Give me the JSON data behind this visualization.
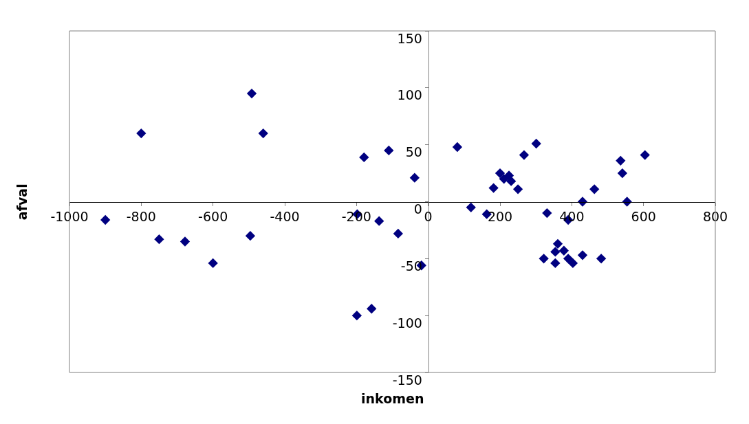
{
  "chart_data": {
    "type": "scatter",
    "xlabel": "inkomen",
    "ylabel": "afval",
    "x": [
      -900,
      -800,
      -750,
      -678,
      -600,
      -492,
      -496,
      -460,
      -198,
      -179,
      -137,
      -110,
      -84,
      -38,
      -19,
      -199,
      -158,
      81,
      119,
      163,
      182,
      200,
      211,
      225,
      231,
      250,
      267,
      301,
      331,
      322,
      361,
      354,
      378,
      390,
      354,
      403,
      430,
      482,
      390,
      430,
      463,
      536,
      541,
      554,
      604
    ],
    "series": [
      {
        "color": "#000080",
        "values": [
          -16,
          60,
          -33,
          -35,
          -54,
          95,
          -30,
          60,
          -11,
          39,
          -17,
          45,
          -28,
          21,
          -56,
          -100,
          -94,
          48,
          -5,
          -11,
          12,
          25,
          20,
          23,
          18,
          11,
          41,
          51,
          -10,
          -50,
          -37,
          -44,
          -43,
          -50,
          -54,
          -54,
          -47,
          -50,
          -16,
          0,
          11,
          36,
          25,
          0,
          41
        ]
      }
    ],
    "marker": "diamond",
    "xlim": [
      -1000,
      800
    ],
    "ylim": [
      -150,
      150
    ],
    "xticks": [
      -1000,
      -800,
      -600,
      -400,
      -200,
      0,
      200,
      400,
      600,
      800
    ],
    "yticks": [
      -150,
      -100,
      -50,
      0,
      50,
      100,
      150
    ],
    "grid": false
  }
}
